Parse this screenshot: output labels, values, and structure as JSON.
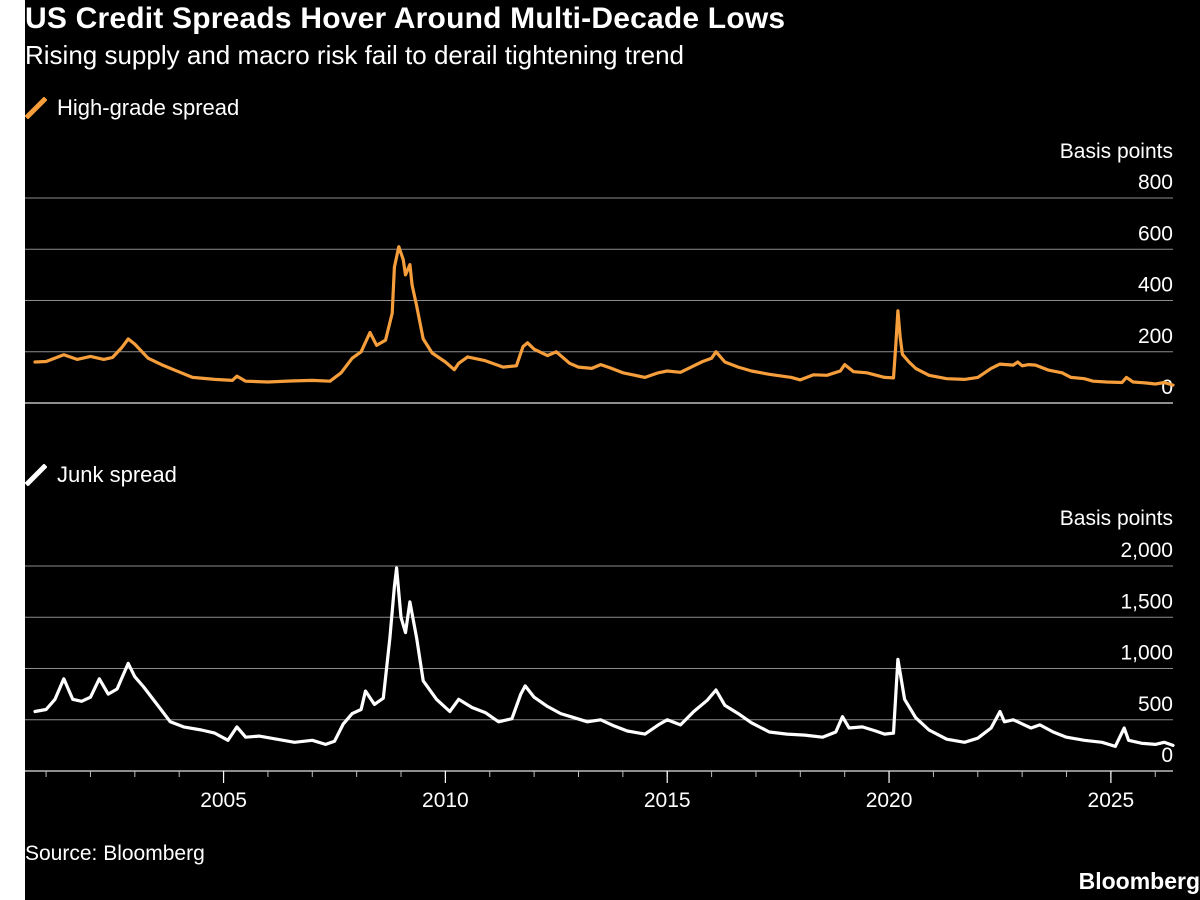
{
  "header": {
    "title": "US Credit Spreads Hover Around Multi-Decade Lows",
    "subtitle": "Rising supply and macro risk fail to derail tightening trend"
  },
  "footer": {
    "source": "Source: Bloomberg",
    "brand": "Bloomberg"
  },
  "colors": {
    "background": "#000000",
    "high_grade": "#f59e3b",
    "junk": "#ffffff",
    "grid": "#8c8c8c"
  },
  "chart_data": [
    {
      "type": "line",
      "title": "High-grade spread",
      "ylabel": "Basis points",
      "ylim": [
        0,
        800
      ],
      "yticks": [
        0,
        200,
        400,
        600,
        800
      ],
      "ytick_labels": [
        "0",
        "200",
        "400",
        "600",
        "800"
      ],
      "xlim": [
        2000.75,
        2026.4
      ],
      "grid": true,
      "series": [
        {
          "name": "High-grade spread",
          "color": "#f59e3b",
          "points": [
            [
              2000.75,
              160
            ],
            [
              2001.0,
              162
            ],
            [
              2001.4,
              188
            ],
            [
              2001.7,
              170
            ],
            [
              2002.0,
              182
            ],
            [
              2002.3,
              170
            ],
            [
              2002.5,
              178
            ],
            [
              2002.7,
              215
            ],
            [
              2002.85,
              250
            ],
            [
              2003.0,
              230
            ],
            [
              2003.3,
              175
            ],
            [
              2003.6,
              150
            ],
            [
              2003.9,
              128
            ],
            [
              2004.3,
              100
            ],
            [
              2004.8,
              92
            ],
            [
              2005.2,
              88
            ],
            [
              2005.3,
              105
            ],
            [
              2005.5,
              85
            ],
            [
              2006.0,
              82
            ],
            [
              2006.5,
              86
            ],
            [
              2007.0,
              88
            ],
            [
              2007.4,
              85
            ],
            [
              2007.65,
              118
            ],
            [
              2007.9,
              175
            ],
            [
              2008.1,
              200
            ],
            [
              2008.3,
              275
            ],
            [
              2008.45,
              225
            ],
            [
              2008.65,
              245
            ],
            [
              2008.8,
              350
            ],
            [
              2008.85,
              530
            ],
            [
              2008.9,
              570
            ],
            [
              2008.95,
              610
            ],
            [
              2009.05,
              560
            ],
            [
              2009.1,
              500
            ],
            [
              2009.2,
              540
            ],
            [
              2009.25,
              460
            ],
            [
              2009.35,
              380
            ],
            [
              2009.5,
              250
            ],
            [
              2009.7,
              195
            ],
            [
              2010.0,
              160
            ],
            [
              2010.2,
              130
            ],
            [
              2010.3,
              155
            ],
            [
              2010.5,
              180
            ],
            [
              2010.9,
              165
            ],
            [
              2011.3,
              140
            ],
            [
              2011.6,
              145
            ],
            [
              2011.75,
              220
            ],
            [
              2011.85,
              235
            ],
            [
              2012.0,
              210
            ],
            [
              2012.3,
              185
            ],
            [
              2012.5,
              200
            ],
            [
              2012.8,
              155
            ],
            [
              2013.0,
              140
            ],
            [
              2013.3,
              135
            ],
            [
              2013.5,
              150
            ],
            [
              2013.7,
              138
            ],
            [
              2014.0,
              118
            ],
            [
              2014.5,
              100
            ],
            [
              2014.8,
              118
            ],
            [
              2015.0,
              125
            ],
            [
              2015.3,
              120
            ],
            [
              2015.6,
              145
            ],
            [
              2015.8,
              162
            ],
            [
              2016.0,
              175
            ],
            [
              2016.1,
              200
            ],
            [
              2016.3,
              160
            ],
            [
              2016.6,
              140
            ],
            [
              2016.9,
              125
            ],
            [
              2017.3,
              112
            ],
            [
              2017.8,
              100
            ],
            [
              2018.0,
              90
            ],
            [
              2018.3,
              110
            ],
            [
              2018.6,
              108
            ],
            [
              2018.9,
              125
            ],
            [
              2019.0,
              150
            ],
            [
              2019.2,
              122
            ],
            [
              2019.5,
              118
            ],
            [
              2019.9,
              100
            ],
            [
              2020.1,
              98
            ],
            [
              2020.15,
              220
            ],
            [
              2020.2,
              360
            ],
            [
              2020.25,
              260
            ],
            [
              2020.3,
              190
            ],
            [
              2020.45,
              160
            ],
            [
              2020.6,
              135
            ],
            [
              2020.9,
              108
            ],
            [
              2021.3,
              95
            ],
            [
              2021.7,
              92
            ],
            [
              2022.0,
              100
            ],
            [
              2022.3,
              135
            ],
            [
              2022.5,
              152
            ],
            [
              2022.8,
              148
            ],
            [
              2022.9,
              160
            ],
            [
              2023.0,
              145
            ],
            [
              2023.15,
              150
            ],
            [
              2023.3,
              148
            ],
            [
              2023.6,
              128
            ],
            [
              2023.9,
              118
            ],
            [
              2024.1,
              100
            ],
            [
              2024.4,
              95
            ],
            [
              2024.6,
              85
            ],
            [
              2024.9,
              82
            ],
            [
              2025.25,
              80
            ],
            [
              2025.35,
              100
            ],
            [
              2025.5,
              82
            ],
            [
              2025.8,
              78
            ],
            [
              2026.0,
              74
            ],
            [
              2026.2,
              80
            ],
            [
              2026.4,
              70
            ]
          ]
        }
      ]
    },
    {
      "type": "line",
      "title": "Junk spread",
      "ylabel": "Basis points",
      "ylim": [
        0,
        2000
      ],
      "yticks": [
        0,
        500,
        1000,
        1500,
        2000
      ],
      "ytick_labels": [
        "0",
        "500",
        "1,000",
        "1,500",
        "2,000"
      ],
      "xlim": [
        2000.75,
        2026.4
      ],
      "xticks": [
        2005,
        2010,
        2015,
        2020,
        2025
      ],
      "xtick_labels": [
        "2005",
        "2010",
        "2015",
        "2020",
        "2025"
      ],
      "grid": true,
      "series": [
        {
          "name": "Junk spread",
          "color": "#ffffff",
          "points": [
            [
              2000.75,
              580
            ],
            [
              2001.0,
              600
            ],
            [
              2001.2,
              700
            ],
            [
              2001.4,
              900
            ],
            [
              2001.6,
              700
            ],
            [
              2001.8,
              680
            ],
            [
              2002.0,
              720
            ],
            [
              2002.2,
              900
            ],
            [
              2002.4,
              750
            ],
            [
              2002.6,
              800
            ],
            [
              2002.7,
              900
            ],
            [
              2002.85,
              1050
            ],
            [
              2003.0,
              920
            ],
            [
              2003.2,
              820
            ],
            [
              2003.5,
              650
            ],
            [
              2003.8,
              480
            ],
            [
              2004.1,
              430
            ],
            [
              2004.5,
              400
            ],
            [
              2004.8,
              370
            ],
            [
              2005.1,
              300
            ],
            [
              2005.3,
              430
            ],
            [
              2005.5,
              330
            ],
            [
              2005.8,
              340
            ],
            [
              2006.2,
              310
            ],
            [
              2006.6,
              280
            ],
            [
              2007.0,
              300
            ],
            [
              2007.3,
              260
            ],
            [
              2007.5,
              290
            ],
            [
              2007.7,
              460
            ],
            [
              2007.9,
              560
            ],
            [
              2008.1,
              600
            ],
            [
              2008.2,
              780
            ],
            [
              2008.4,
              650
            ],
            [
              2008.6,
              710
            ],
            [
              2008.75,
              1300
            ],
            [
              2008.85,
              1800
            ],
            [
              2008.9,
              1980
            ],
            [
              2009.0,
              1500
            ],
            [
              2009.1,
              1350
            ],
            [
              2009.2,
              1650
            ],
            [
              2009.35,
              1300
            ],
            [
              2009.5,
              880
            ],
            [
              2009.8,
              700
            ],
            [
              2010.1,
              580
            ],
            [
              2010.3,
              700
            ],
            [
              2010.6,
              620
            ],
            [
              2010.9,
              570
            ],
            [
              2011.2,
              480
            ],
            [
              2011.5,
              510
            ],
            [
              2011.7,
              750
            ],
            [
              2011.8,
              830
            ],
            [
              2012.0,
              720
            ],
            [
              2012.3,
              630
            ],
            [
              2012.6,
              560
            ],
            [
              2012.9,
              520
            ],
            [
              2013.2,
              480
            ],
            [
              2013.5,
              500
            ],
            [
              2013.8,
              440
            ],
            [
              2014.1,
              390
            ],
            [
              2014.5,
              360
            ],
            [
              2014.8,
              450
            ],
            [
              2015.0,
              500
            ],
            [
              2015.3,
              450
            ],
            [
              2015.6,
              580
            ],
            [
              2015.9,
              690
            ],
            [
              2016.1,
              790
            ],
            [
              2016.3,
              640
            ],
            [
              2016.6,
              560
            ],
            [
              2016.9,
              470
            ],
            [
              2017.3,
              380
            ],
            [
              2017.7,
              360
            ],
            [
              2018.1,
              350
            ],
            [
              2018.5,
              330
            ],
            [
              2018.8,
              380
            ],
            [
              2018.95,
              530
            ],
            [
              2019.1,
              420
            ],
            [
              2019.4,
              430
            ],
            [
              2019.7,
              390
            ],
            [
              2019.9,
              360
            ],
            [
              2020.1,
              370
            ],
            [
              2020.2,
              1090
            ],
            [
              2020.35,
              700
            ],
            [
              2020.6,
              520
            ],
            [
              2020.9,
              400
            ],
            [
              2021.3,
              310
            ],
            [
              2021.7,
              280
            ],
            [
              2022.0,
              320
            ],
            [
              2022.3,
              420
            ],
            [
              2022.5,
              580
            ],
            [
              2022.6,
              480
            ],
            [
              2022.8,
              500
            ],
            [
              2023.0,
              460
            ],
            [
              2023.2,
              420
            ],
            [
              2023.4,
              450
            ],
            [
              2023.7,
              380
            ],
            [
              2024.0,
              330
            ],
            [
              2024.4,
              300
            ],
            [
              2024.8,
              280
            ],
            [
              2025.1,
              240
            ],
            [
              2025.3,
              420
            ],
            [
              2025.4,
              300
            ],
            [
              2025.7,
              270
            ],
            [
              2026.0,
              260
            ],
            [
              2026.2,
              280
            ],
            [
              2026.4,
              250
            ]
          ]
        }
      ]
    }
  ]
}
